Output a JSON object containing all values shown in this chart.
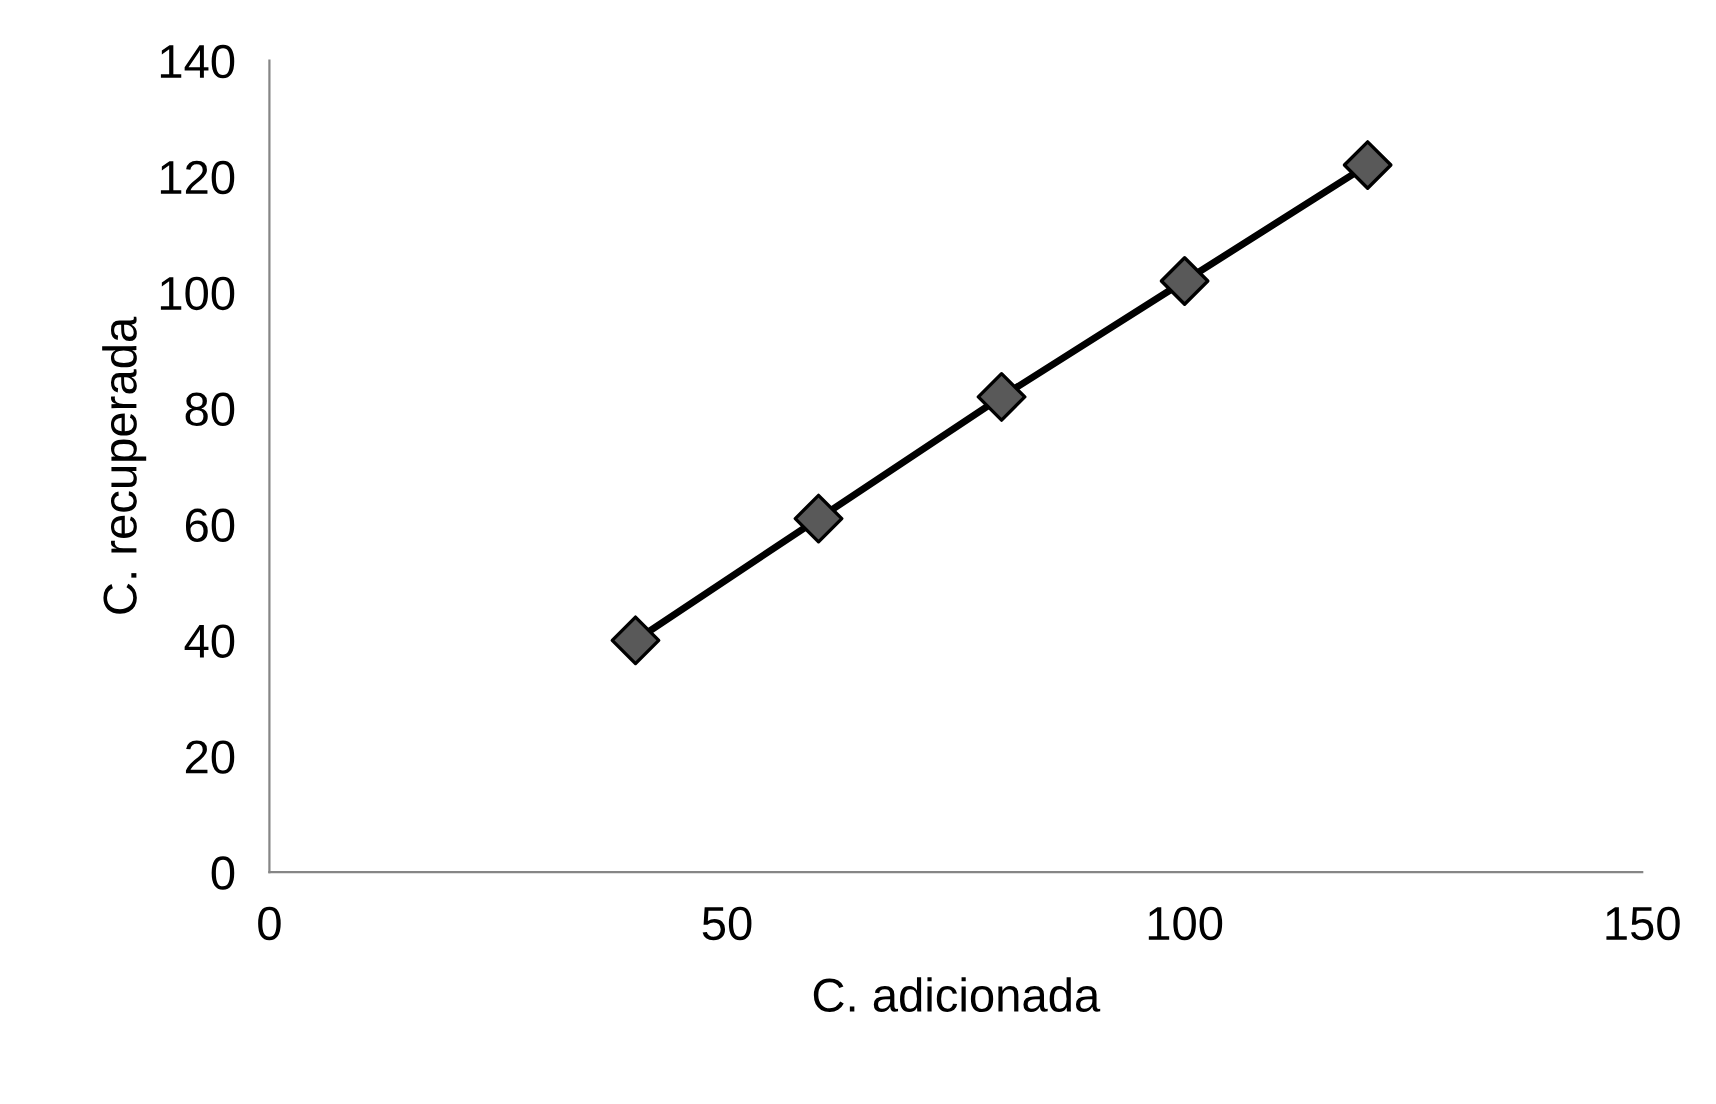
{
  "chart_data": {
    "type": "scatter",
    "xlabel": "C. adicionada",
    "ylabel": "C. recuperada",
    "xlim": [
      0,
      150
    ],
    "xticks": [
      0,
      50,
      100,
      150
    ],
    "ylim": [
      0,
      140
    ],
    "yticks": [
      0,
      20,
      40,
      60,
      80,
      100,
      120,
      140
    ],
    "grid": false,
    "legend": false,
    "series": [
      {
        "type": "line",
        "color": "#000000",
        "marker": "none",
        "x": [
          40,
          60,
          80,
          100,
          120
        ],
        "values": [
          40,
          61,
          82,
          102,
          122
        ]
      },
      {
        "color": "#595959",
        "marker": "diamond",
        "x": [
          40,
          60,
          80,
          100,
          120
        ],
        "values": [
          40,
          61,
          82,
          102,
          122
        ]
      }
    ]
  }
}
